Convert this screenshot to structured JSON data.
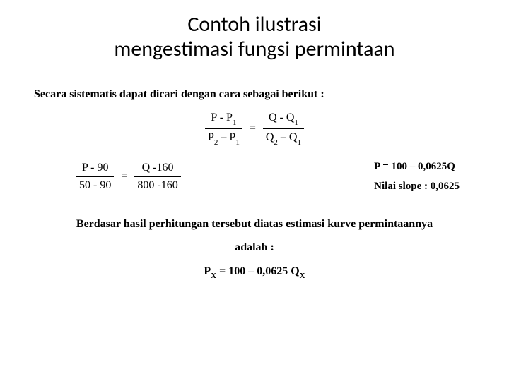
{
  "title": {
    "line1": "Contoh ilustrasi",
    "line2": "mengestimasi fungsi permintaan"
  },
  "intro_text": "Secara sistematis dapat dicari dengan cara sebagai berikut :",
  "formula_general": {
    "left": {
      "num_a": "P - P",
      "num_sub": "1",
      "den_a": "P",
      "den_sub1": "2",
      "den_mid": " – P",
      "den_sub2": "1"
    },
    "right": {
      "num_a": "Q - Q",
      "num_sub": "1",
      "den_a": "Q",
      "den_sub1": "2",
      "den_mid": " – Q",
      "den_sub2": "1"
    }
  },
  "formula_numeric": {
    "left": {
      "num": "P - 90",
      "den": "50 - 90"
    },
    "right": {
      "num": "Q -160",
      "den": "800 -160"
    }
  },
  "result_line1": "P = 100 – 0,0625Q",
  "result_line2": "Nilai slope : 0,0625",
  "conclusion_line1": "Berdasar hasil perhitungan tersebut diatas estimasi kurve permintaannya",
  "conclusion_line2": "adalah :",
  "final_eq": {
    "p": "P",
    "px": "X",
    "mid": " = 100 – 0,0625 Q",
    "qx": "X"
  },
  "colors": {
    "text": "#000000",
    "background": "#ffffff"
  }
}
